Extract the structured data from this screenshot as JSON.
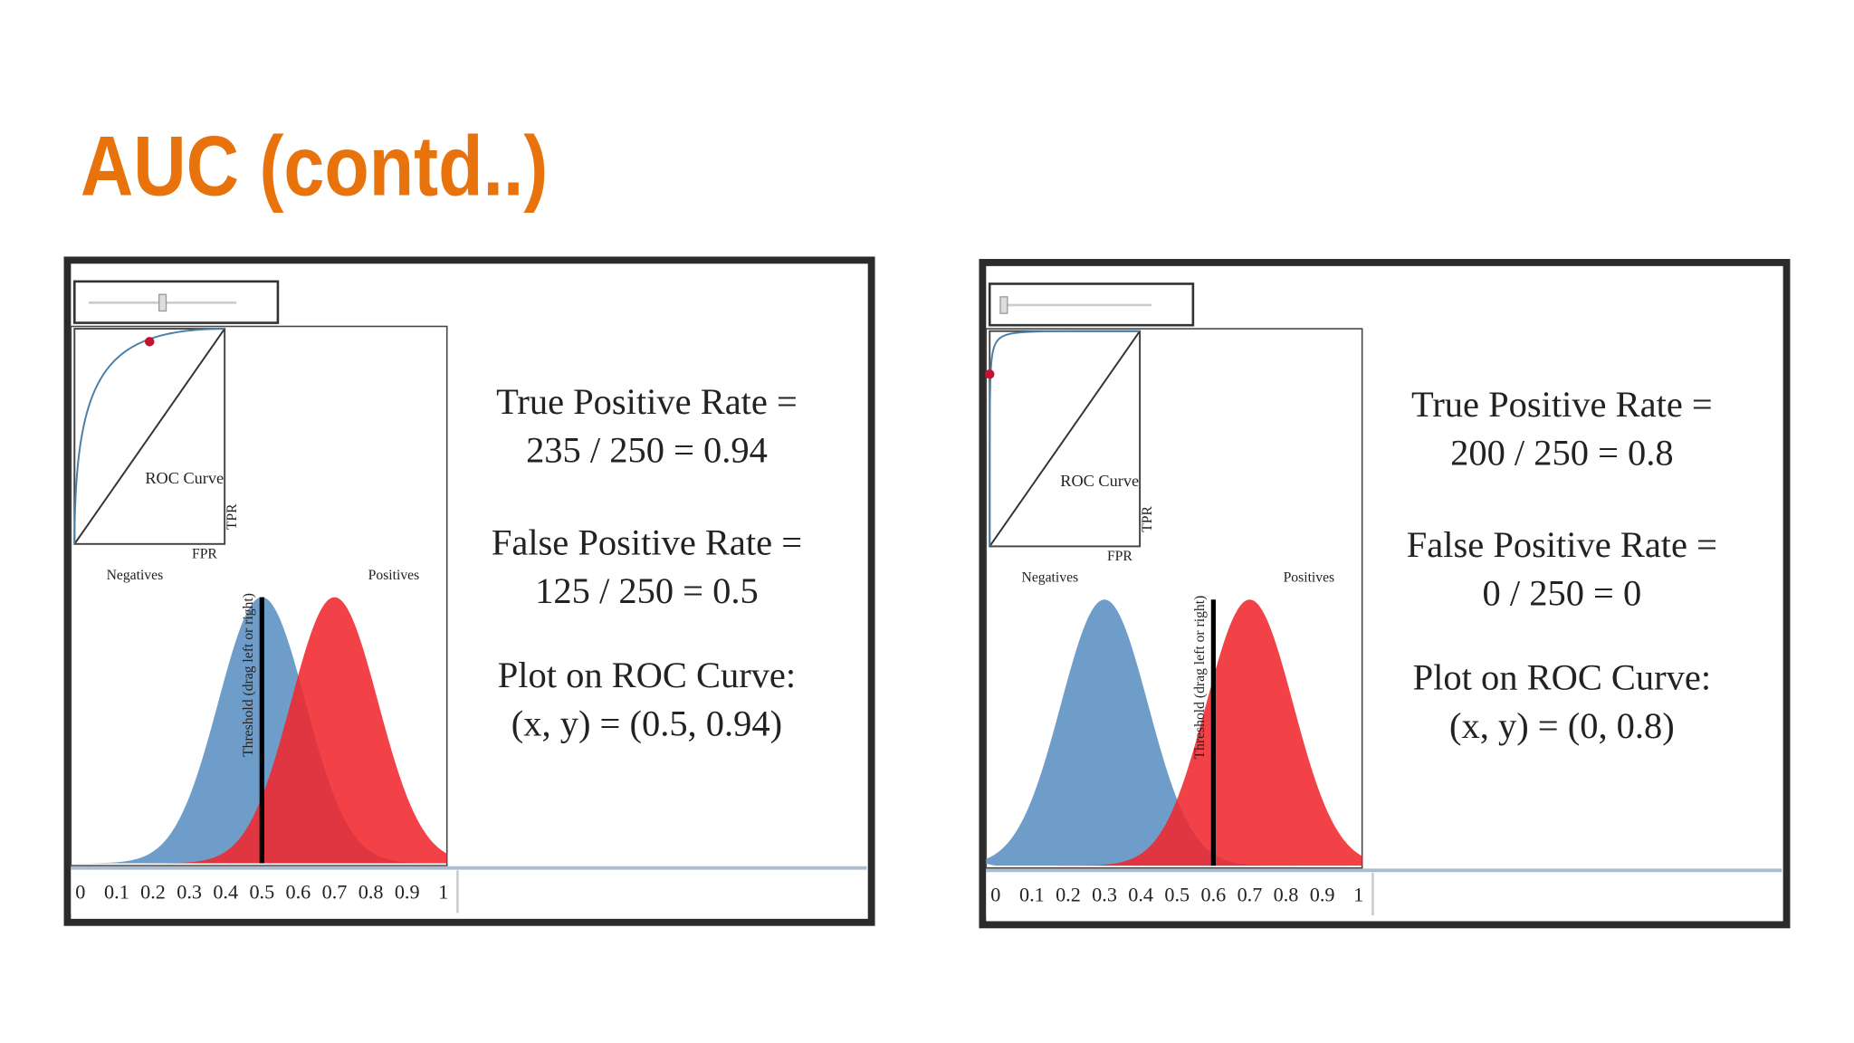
{
  "title": "AUC (contd..)",
  "panels": [
    {
      "roc_label": "ROC Curve",
      "tpr_label": "TPR",
      "fpr_label": "FPR",
      "negatives": {
        "label": "Negatives",
        "mean": 0.5,
        "sd": 0.12
      },
      "positives": {
        "label": "Positives",
        "mean": 0.7,
        "sd": 0.12
      },
      "threshold_label": "Threshold (drag left or right)",
      "threshold": 0.5,
      "roc_point": [
        0.5,
        0.94
      ],
      "xticks": [
        0,
        0.1,
        0.2,
        0.3,
        0.4,
        0.5,
        0.6,
        0.7,
        0.8,
        0.9,
        1
      ],
      "stats": [
        "True Positive Rate =",
        "235 / 250 = 0.94",
        "False Positive Rate =",
        "125 / 250 = 0.5",
        "Plot on ROC Curve:",
        "(x, y) = (0.5, 0.94)"
      ]
    },
    {
      "roc_label": "ROC Curve",
      "tpr_label": "TPR",
      "fpr_label": "FPR",
      "negatives": {
        "label": "Negatives",
        "mean": 0.3,
        "sd": 0.12
      },
      "positives": {
        "label": "Positives",
        "mean": 0.7,
        "sd": 0.12
      },
      "threshold_label": "Threshold (drag left or right)",
      "threshold": 0.6,
      "roc_point": [
        0,
        0.8
      ],
      "xticks": [
        0,
        0.1,
        0.2,
        0.3,
        0.4,
        0.5,
        0.6,
        0.7,
        0.8,
        0.9,
        1
      ],
      "stats": [
        "True Positive Rate =",
        "200 / 250 = 0.8",
        "False Positive Rate =",
        "0 / 250 = 0",
        "Plot on ROC Curve:",
        "(x, y) = (0, 0.8)"
      ]
    }
  ]
}
